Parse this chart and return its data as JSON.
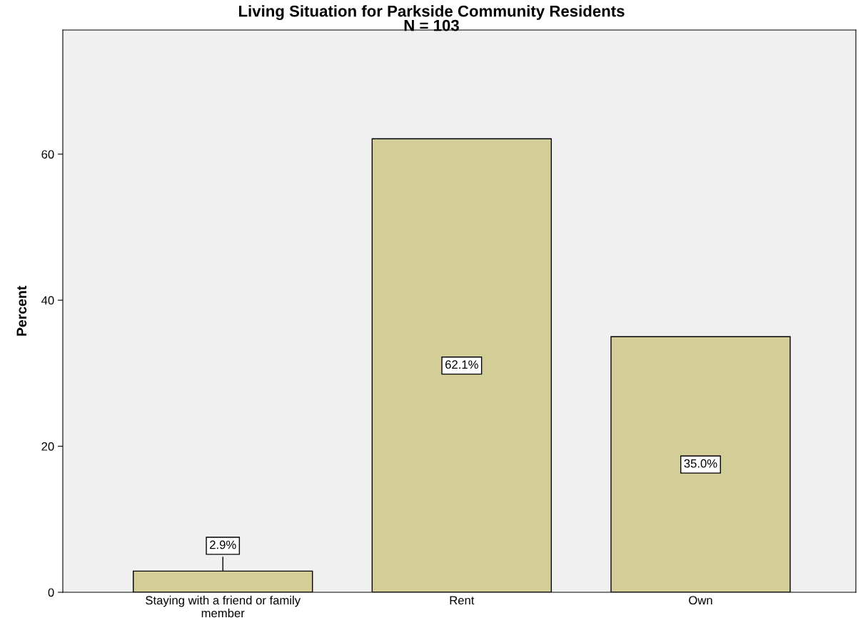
{
  "chart_data": {
    "type": "bar",
    "title": "Living Situation for Parkside Community Residents",
    "subtitle": "N = 103",
    "ylabel": "Percent",
    "categories": [
      "Staying with a friend or family member",
      "Rent",
      "Own"
    ],
    "values": [
      2.9,
      62.1,
      35.0
    ],
    "color": "#d3ce97",
    "value_labels": [
      "2.9%",
      "62.1%",
      "35.0%"
    ],
    "ylim": [
      0,
      77
    ],
    "yticks": [
      0,
      20,
      40,
      60
    ],
    "grid": false,
    "legend": false
  }
}
